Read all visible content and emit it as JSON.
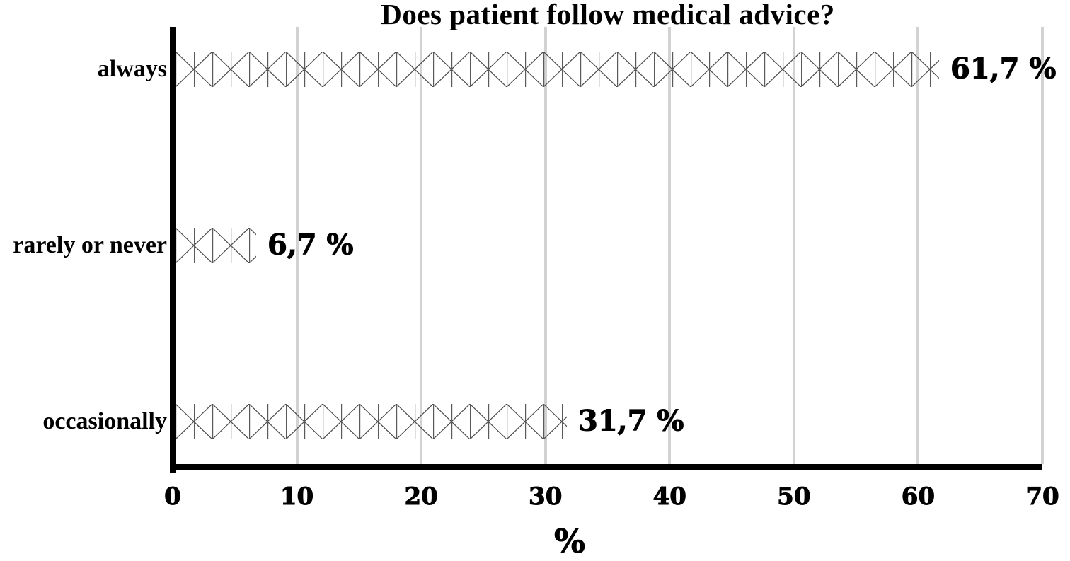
{
  "chart_data": {
    "type": "bar",
    "orientation": "horizontal",
    "title": "Does patient follow medical advice?",
    "xlabel": "%",
    "categories": [
      "always",
      "rarely or never",
      "occasionally"
    ],
    "values": [
      61.7,
      6.7,
      31.7
    ],
    "value_labels": [
      "61,7 %",
      "6,7 %",
      "31,7 %"
    ],
    "xlim": [
      0,
      70
    ],
    "x_ticks": [
      0,
      10,
      20,
      30,
      40,
      50,
      60,
      70
    ],
    "grid": "vertical gridlines on",
    "legend": "none",
    "bar_fill": "white with diagonal crosshatch (X) pattern",
    "colors": {
      "background": "#ffffff",
      "axis": "#000000",
      "gridline": "#d2d2d2",
      "pattern_line": "#4a4a4a",
      "text": "#000000"
    }
  }
}
